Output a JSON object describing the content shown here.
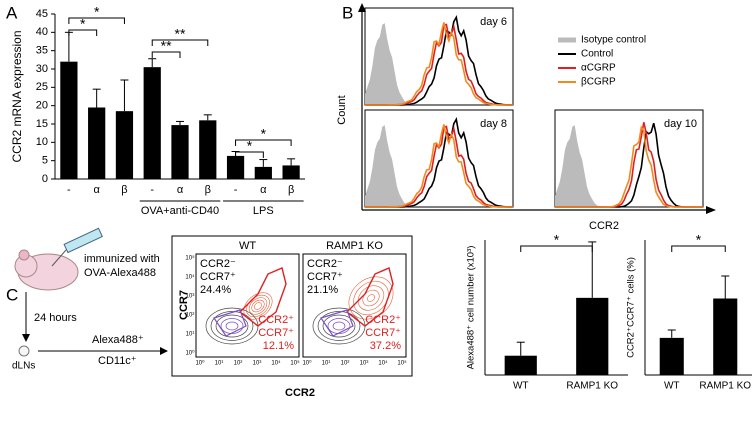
{
  "chart_data": [
    {
      "type": "bar",
      "panel": "A",
      "y_label": "CCR2 mRNA expression",
      "categories": [
        "-",
        "α",
        "β",
        "-",
        "α",
        "β",
        "-",
        "α",
        "β"
      ],
      "values": [
        32,
        19.5,
        18.5,
        30.5,
        14.7,
        16,
        6.3,
        3.3,
        3.7
      ],
      "errors": [
        8,
        5,
        8.5,
        2.3,
        1,
        1.5,
        1.2,
        2,
        1.8
      ],
      "color": "#000000",
      "ylim": [
        0,
        45
      ],
      "yticks": [
        0,
        5,
        10,
        15,
        20,
        25,
        30,
        35,
        40,
        45
      ],
      "groups": [
        "OVA+anti-CD40",
        "LPS"
      ],
      "annotations": [
        "*",
        "*",
        "**",
        "**",
        "*",
        "*"
      ]
    },
    {
      "type": "bar",
      "y_label": "Alexa488⁺ cell number (x10³)",
      "categories": [
        "WT",
        "RAMP1 KO"
      ],
      "values": [
        5,
        20
      ],
      "errors": [
        3.5,
        14.5
      ],
      "color": "#000000",
      "ylim": [
        0,
        35
      ],
      "annotations": [
        "*"
      ]
    },
    {
      "type": "bar",
      "y_label": "CCR2⁺CCR7⁺ cells (%)",
      "categories": [
        "WT",
        "RAMP1 KO"
      ],
      "values": [
        16.5,
        34
      ],
      "errors": [
        3.5,
        10
      ],
      "color": "#000000",
      "ylim": [
        0,
        60
      ],
      "annotations": [
        "*"
      ]
    }
  ],
  "panel_b": {
    "label": "B",
    "y_label": "Count",
    "x_label": "CCR2",
    "plots": [
      "day 6",
      "day 8",
      "day 10"
    ],
    "legend": [
      {
        "name": "Isotype control",
        "color": "#bbbbbb"
      },
      {
        "name": "Control",
        "color": "#000000"
      },
      {
        "name": "αCGRP",
        "color": "#e02020"
      },
      {
        "name": "βCGRP",
        "color": "#f08a20"
      }
    ]
  },
  "panel_c": {
    "label": "C",
    "immunized": "immunized with",
    "antigen": "OVA-Alexa488",
    "time": "24 hours",
    "tissue": "dLNs",
    "gate_1": "Alexa488⁺",
    "gate_2": "CD11c⁺",
    "x_label": "CCR2",
    "y_label": "CCR7",
    "ticks": [
      "10⁰",
      "10¹",
      "10²",
      "10³",
      "10⁴",
      "10⁵"
    ],
    "plots": [
      {
        "title": "WT",
        "neg_1": "CCR2⁻",
        "neg_2": "CCR7⁺",
        "neg_pct": "24.4%",
        "pos_1": "CCR2⁺",
        "pos_2": "CCR7⁺",
        "pos_pct": "12.1%"
      },
      {
        "title": "RAMP1 KO",
        "neg_1": "CCR2⁻",
        "neg_2": "CCR7⁺",
        "neg_pct": "21.1%",
        "pos_1": "CCR2⁺",
        "pos_2": "CCR7⁺",
        "pos_pct": "37.2%"
      }
    ]
  }
}
